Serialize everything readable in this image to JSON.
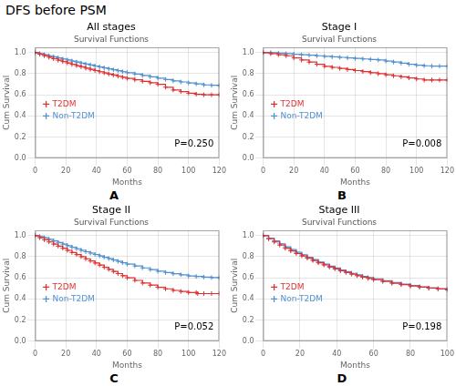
{
  "title": "DFS before PSM",
  "chart_data": [
    {
      "type": "line",
      "title": "All stages",
      "subtitle": "Survival Functions",
      "annotation": "P=0.250",
      "panel_label": "A",
      "x_label": "Months",
      "y_label": "Cum Survival",
      "xlim": [
        0,
        120
      ],
      "ylim": [
        0.0,
        1.05
      ],
      "xticks": [
        0,
        20,
        40,
        60,
        80,
        100,
        120
      ],
      "yticks": [
        {
          "value": 0.0,
          "label": "0.0"
        },
        0.2,
        0.4,
        0.6,
        0.8,
        {
          "value": 1.0,
          "label": "1.0"
        }
      ],
      "grid": true,
      "legend": "lower left",
      "series": [
        {
          "name": "T2DM",
          "color": "#e03030",
          "line_style": "step",
          "marker": "plus",
          "x": [
            0,
            3,
            6,
            9,
            12,
            15,
            18,
            21,
            24,
            27,
            30,
            33,
            36,
            39,
            42,
            45,
            48,
            51,
            54,
            57,
            60,
            65,
            70,
            75,
            80,
            85,
            90,
            95,
            100,
            105,
            110,
            115,
            120
          ],
          "values": [
            1.0,
            0.985,
            0.97,
            0.956,
            0.942,
            0.928,
            0.915,
            0.902,
            0.889,
            0.877,
            0.865,
            0.853,
            0.841,
            0.83,
            0.819,
            0.808,
            0.797,
            0.787,
            0.776,
            0.766,
            0.756,
            0.742,
            0.728,
            0.714,
            0.7,
            0.672,
            0.645,
            0.63,
            0.615,
            0.605,
            0.6,
            0.6,
            0.6
          ]
        },
        {
          "name": "Non-T2DM",
          "color": "#5090d0",
          "line_style": "step",
          "marker": "plus",
          "x": [
            0,
            3,
            6,
            9,
            12,
            15,
            18,
            21,
            24,
            27,
            30,
            33,
            36,
            39,
            42,
            45,
            48,
            51,
            54,
            57,
            60,
            65,
            70,
            75,
            80,
            85,
            90,
            95,
            100,
            105,
            110,
            115,
            120
          ],
          "values": [
            1.0,
            0.99,
            0.98,
            0.97,
            0.96,
            0.95,
            0.94,
            0.93,
            0.92,
            0.91,
            0.9,
            0.891,
            0.882,
            0.873,
            0.864,
            0.855,
            0.846,
            0.837,
            0.828,
            0.819,
            0.81,
            0.797,
            0.784,
            0.771,
            0.758,
            0.745,
            0.732,
            0.722,
            0.712,
            0.703,
            0.694,
            0.69,
            0.688
          ]
        }
      ]
    },
    {
      "type": "line",
      "title": "Stage I",
      "subtitle": "Survival Functions",
      "annotation": "P=0.008",
      "panel_label": "B",
      "x_label": "Months",
      "y_label": "Cum Survival",
      "xlim": [
        0,
        120
      ],
      "ylim": [
        0.0,
        1.05
      ],
      "xticks": [
        0,
        20,
        40,
        60,
        80,
        100,
        120
      ],
      "yticks": [
        {
          "value": 0.0,
          "label": "0.0"
        },
        0.2,
        0.4,
        0.6,
        0.8,
        {
          "value": 1.0,
          "label": "1.0"
        }
      ],
      "grid": true,
      "legend": "lower left",
      "series": [
        {
          "name": "T2DM",
          "color": "#e03030",
          "line_style": "step",
          "marker": "plus",
          "x": [
            0,
            5,
            10,
            15,
            20,
            25,
            30,
            35,
            40,
            45,
            50,
            55,
            60,
            65,
            70,
            75,
            80,
            85,
            90,
            95,
            100,
            105,
            110,
            115,
            120
          ],
          "values": [
            1.0,
            0.99,
            0.98,
            0.97,
            0.95,
            0.93,
            0.91,
            0.89,
            0.87,
            0.86,
            0.85,
            0.84,
            0.83,
            0.82,
            0.81,
            0.8,
            0.79,
            0.78,
            0.77,
            0.76,
            0.75,
            0.74,
            0.74,
            0.74,
            0.74
          ]
        },
        {
          "name": "Non-T2DM",
          "color": "#5090d0",
          "line_style": "step",
          "marker": "plus",
          "x": [
            0,
            5,
            10,
            15,
            20,
            25,
            30,
            35,
            40,
            45,
            50,
            55,
            60,
            65,
            70,
            75,
            80,
            85,
            90,
            95,
            100,
            105,
            110,
            115,
            120
          ],
          "values": [
            1.0,
            1.0,
            0.995,
            0.99,
            0.985,
            0.98,
            0.975,
            0.97,
            0.965,
            0.96,
            0.955,
            0.95,
            0.945,
            0.94,
            0.935,
            0.93,
            0.92,
            0.91,
            0.9,
            0.89,
            0.88,
            0.875,
            0.872,
            0.872,
            0.872
          ]
        }
      ]
    },
    {
      "type": "line",
      "title": "Stage II",
      "subtitle": "Survival Functions",
      "annotation": "P=0.052",
      "panel_label": "C",
      "x_label": "Months",
      "y_label": "Cum Survival",
      "xlim": [
        0,
        120
      ],
      "ylim": [
        0.0,
        1.05
      ],
      "xticks": [
        0,
        20,
        40,
        60,
        80,
        100,
        120
      ],
      "yticks": [
        {
          "value": 0.0,
          "label": "0.0"
        },
        0.2,
        0.4,
        0.6,
        0.8,
        {
          "value": 1.0,
          "label": "1.0"
        }
      ],
      "grid": true,
      "legend": "lower left",
      "series": [
        {
          "name": "T2DM",
          "color": "#e03030",
          "line_style": "step",
          "marker": "plus",
          "x": [
            0,
            3,
            6,
            9,
            12,
            15,
            18,
            21,
            24,
            27,
            30,
            33,
            36,
            39,
            42,
            45,
            48,
            51,
            54,
            57,
            60,
            65,
            70,
            75,
            80,
            85,
            90,
            95,
            100,
            105,
            106,
            110,
            115,
            120
          ],
          "values": [
            1.0,
            0.98,
            0.96,
            0.94,
            0.92,
            0.9,
            0.88,
            0.86,
            0.84,
            0.82,
            0.8,
            0.78,
            0.76,
            0.74,
            0.72,
            0.7,
            0.68,
            0.66,
            0.64,
            0.62,
            0.6,
            0.575,
            0.55,
            0.53,
            0.51,
            0.495,
            0.48,
            0.47,
            0.46,
            0.46,
            0.45,
            0.45,
            0.45,
            0.45
          ]
        },
        {
          "name": "Non-T2DM",
          "color": "#5090d0",
          "line_style": "step",
          "marker": "plus",
          "x": [
            0,
            3,
            6,
            9,
            12,
            15,
            18,
            21,
            24,
            27,
            30,
            33,
            36,
            39,
            42,
            45,
            48,
            51,
            54,
            57,
            60,
            65,
            70,
            75,
            80,
            85,
            90,
            95,
            100,
            105,
            110,
            115,
            120
          ],
          "values": [
            1.0,
            0.99,
            0.98,
            0.965,
            0.95,
            0.935,
            0.92,
            0.905,
            0.89,
            0.875,
            0.86,
            0.847,
            0.834,
            0.821,
            0.808,
            0.795,
            0.782,
            0.769,
            0.756,
            0.743,
            0.73,
            0.712,
            0.694,
            0.678,
            0.662,
            0.65,
            0.638,
            0.628,
            0.618,
            0.612,
            0.606,
            0.602,
            0.6
          ]
        }
      ]
    },
    {
      "type": "line",
      "title": "Stage III",
      "subtitle": "Survival Functions",
      "annotation": "P=0.198",
      "panel_label": "D",
      "x_label": "Months",
      "y_label": "Cum Survival",
      "xlim": [
        0,
        100
      ],
      "ylim": [
        0.0,
        1.05
      ],
      "xticks": [
        0,
        20,
        40,
        60,
        80,
        100
      ],
      "yticks": [
        {
          "value": 0.0,
          "label": "0.0"
        },
        0.2,
        0.4,
        0.6,
        0.8,
        {
          "value": 1.0,
          "label": "1.0"
        }
      ],
      "grid": true,
      "legend": "lower left",
      "series": [
        {
          "name": "T2DM",
          "color": "#e03030",
          "line_style": "step",
          "marker": "plus",
          "x": [
            0,
            3,
            6,
            9,
            12,
            15,
            18,
            21,
            24,
            27,
            30,
            33,
            36,
            39,
            42,
            45,
            48,
            51,
            54,
            57,
            60,
            65,
            70,
            75,
            80,
            85,
            90,
            95,
            100
          ],
          "values": [
            1.0,
            0.97,
            0.94,
            0.91,
            0.88,
            0.855,
            0.83,
            0.808,
            0.786,
            0.764,
            0.742,
            0.722,
            0.702,
            0.684,
            0.666,
            0.65,
            0.634,
            0.62,
            0.606,
            0.594,
            0.582,
            0.565,
            0.548,
            0.535,
            0.522,
            0.512,
            0.502,
            0.496,
            0.49
          ]
        },
        {
          "name": "Non-T2DM",
          "color": "#5090d0",
          "line_style": "step",
          "marker": "plus",
          "x": [
            0,
            3,
            6,
            9,
            12,
            15,
            18,
            21,
            24,
            27,
            30,
            33,
            36,
            39,
            42,
            45,
            48,
            51,
            54,
            57,
            60,
            65,
            70,
            75,
            80,
            85,
            90,
            95,
            100
          ],
          "values": [
            1.0,
            0.975,
            0.95,
            0.922,
            0.894,
            0.868,
            0.842,
            0.818,
            0.794,
            0.772,
            0.75,
            0.73,
            0.71,
            0.692,
            0.674,
            0.658,
            0.642,
            0.628,
            0.614,
            0.602,
            0.59,
            0.572,
            0.554,
            0.54,
            0.526,
            0.514,
            0.502,
            0.493,
            0.484
          ]
        }
      ]
    }
  ]
}
